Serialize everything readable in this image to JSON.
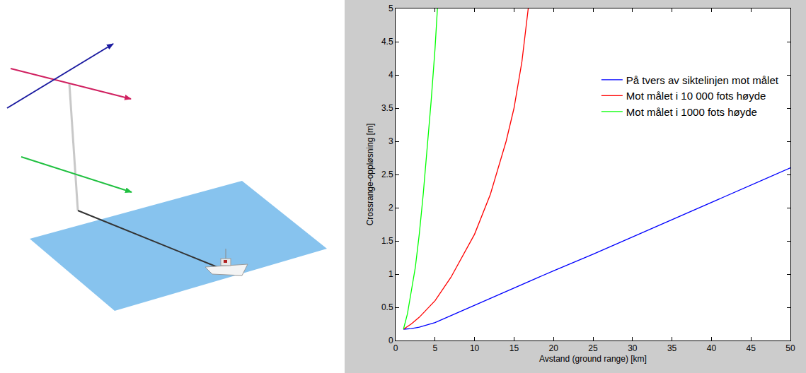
{
  "chart_data": {
    "type": "line",
    "xlabel": "Avstand (ground range) [km]",
    "ylabel": "Crossrange-oppløsning [m]",
    "xlim": [
      0,
      50
    ],
    "xticks": [
      0,
      5,
      10,
      15,
      20,
      25,
      30,
      35,
      40,
      45,
      50
    ],
    "ylim": [
      0,
      5
    ],
    "yticks": [
      0,
      0.5,
      1,
      1.5,
      2,
      2.5,
      3,
      3.5,
      4,
      4.5,
      5
    ],
    "grid": false,
    "legend": "upper right",
    "series": [
      {
        "name": "På tvers av siktelinjen mot målet",
        "color": "#0000ff",
        "x": [
          1,
          2,
          3,
          5,
          7.5,
          10,
          15,
          20,
          25,
          30,
          35,
          40,
          45,
          50
        ],
        "values": [
          0.17,
          0.18,
          0.2,
          0.27,
          0.4,
          0.53,
          0.79,
          1.05,
          1.3,
          1.56,
          1.82,
          2.08,
          2.34,
          2.6
        ]
      },
      {
        "name": "Mot målet i 10 000 fots høyde",
        "color": "#ff0000",
        "x": [
          1,
          2,
          3,
          5,
          7,
          10,
          12,
          14,
          15,
          16,
          16.8
        ],
        "values": [
          0.17,
          0.25,
          0.35,
          0.6,
          0.95,
          1.6,
          2.2,
          3.0,
          3.5,
          4.2,
          5.0
        ]
      },
      {
        "name": "Mot målet i 1000 fots høyde",
        "color": "#00ff00",
        "x": [
          1,
          1.5,
          2,
          2.5,
          3,
          3.5,
          4,
          4.5,
          5,
          5.3
        ],
        "values": [
          0.17,
          0.4,
          0.75,
          1.1,
          1.6,
          2.2,
          2.9,
          3.6,
          4.4,
          5.0
        ]
      }
    ]
  }
}
